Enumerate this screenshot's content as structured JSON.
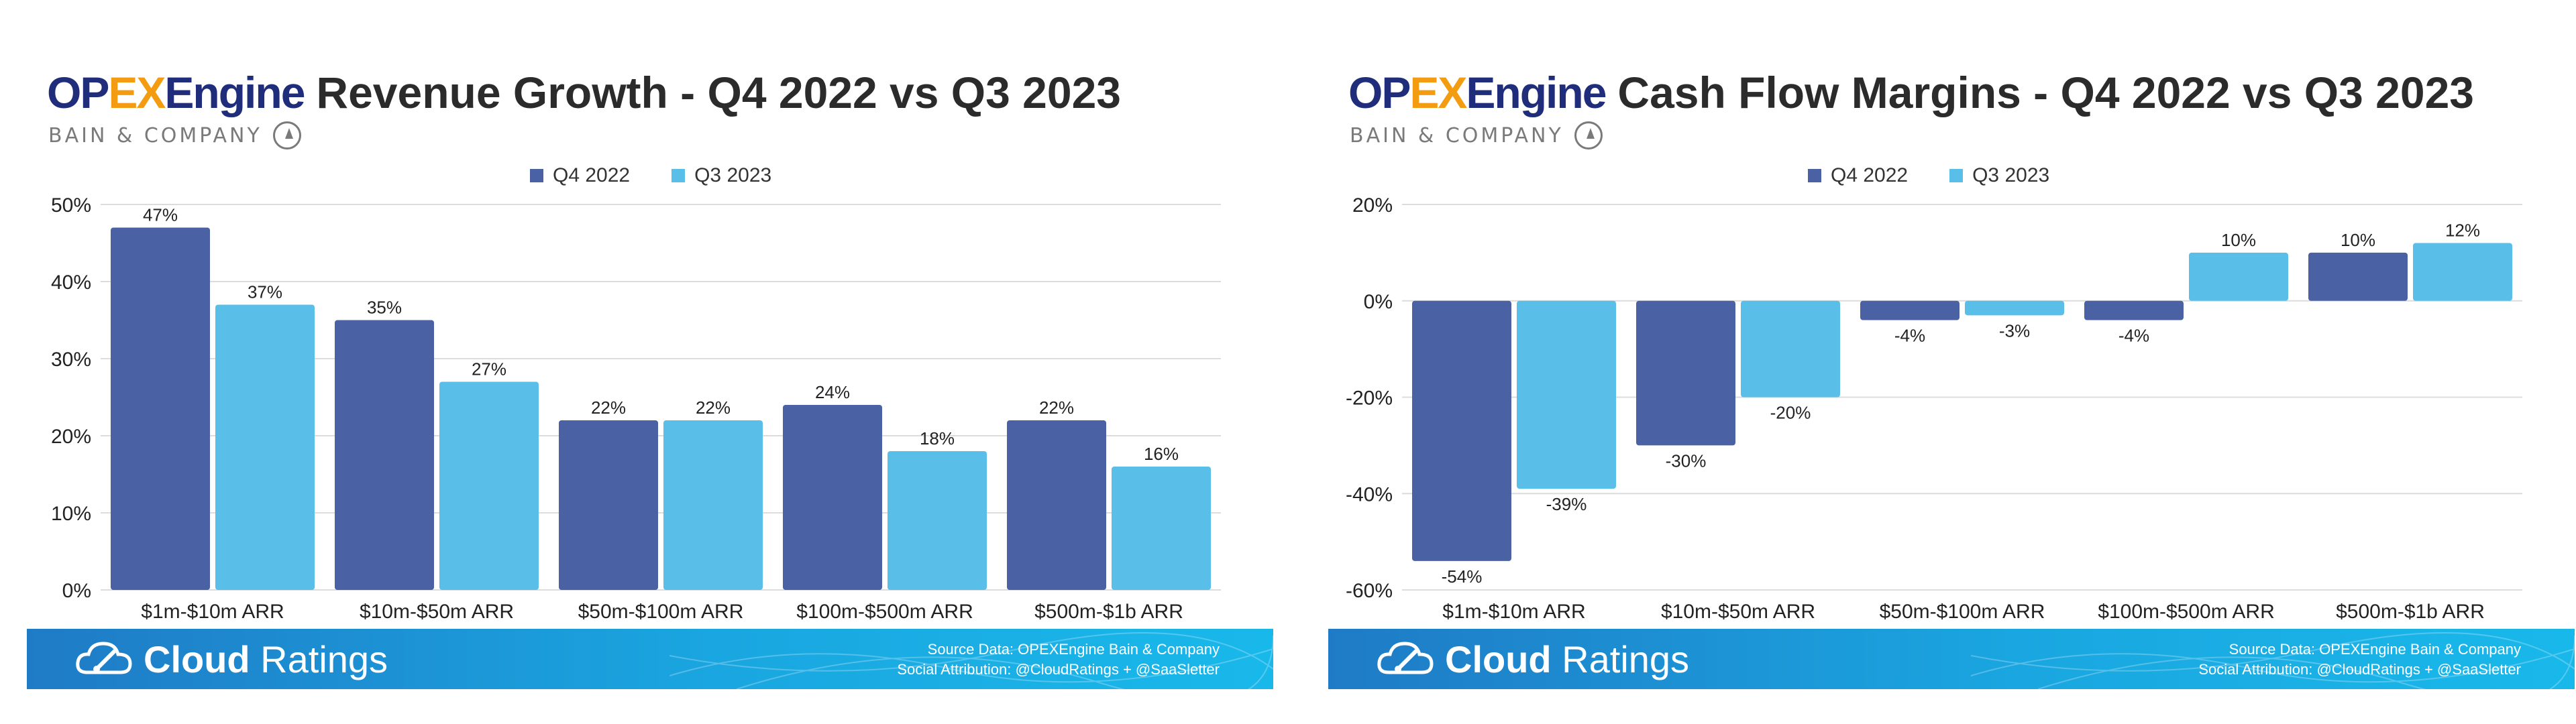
{
  "colors": {
    "q4_2022": "#4a62a3",
    "q3_2023": "#59bfe8",
    "grid": "#dcdcdc",
    "text": "#222222"
  },
  "brand": {
    "op": "OP",
    "ex": "EX",
    "engine": "Engine",
    "bain": "BAIN & COMPANY"
  },
  "footer": {
    "brand_bold": "Cloud",
    "brand_light": " Ratings",
    "source": "Source Data: OPEXEngine Bain & Company",
    "attribution": "Social Attribution: @CloudRatings + @SaaSletter",
    "icon": "cloud-icon"
  },
  "chart_data": [
    {
      "type": "bar",
      "title": "Revenue Growth - Q4 2022 vs Q3 2023",
      "categories": [
        "$1m-$10m ARR",
        "$10m-$50m ARR",
        "$50m-$100m ARR",
        "$100m-$500m ARR",
        "$500m-$1b ARR"
      ],
      "series": [
        {
          "name": "Q4 2022",
          "values": [
            47,
            35,
            22,
            24,
            22
          ],
          "labels": [
            "47%",
            "35%",
            "22%",
            "24%",
            "22%"
          ]
        },
        {
          "name": "Q3 2023",
          "values": [
            37,
            27,
            22,
            18,
            16
          ],
          "labels": [
            "37%",
            "27%",
            "22%",
            "18%",
            "16%"
          ]
        }
      ],
      "ylim": [
        0,
        50
      ],
      "yticks": [
        0,
        10,
        20,
        30,
        40,
        50
      ],
      "ytick_labels": [
        "0%",
        "10%",
        "20%",
        "30%",
        "40%",
        "50%"
      ],
      "grid": true,
      "legend": "top-center"
    },
    {
      "type": "bar",
      "title": "Cash Flow Margins - Q4 2022 vs Q3 2023",
      "categories": [
        "$1m-$10m ARR",
        "$10m-$50m ARR",
        "$50m-$100m ARR",
        "$100m-$500m ARR",
        "$500m-$1b ARR"
      ],
      "series": [
        {
          "name": "Q4 2022",
          "values": [
            -54,
            -30,
            -4,
            -4,
            10
          ],
          "labels": [
            "-54%",
            "-30%",
            "-4%",
            "-4%",
            "10%"
          ]
        },
        {
          "name": "Q3 2023",
          "values": [
            -39,
            -20,
            -3,
            10,
            12
          ],
          "labels": [
            "-39%",
            "-20%",
            "-3%",
            "10%",
            "12%"
          ]
        }
      ],
      "ylim": [
        -60,
        20
      ],
      "yticks": [
        -60,
        -40,
        -20,
        0,
        20
      ],
      "ytick_labels": [
        "-60%",
        "-40%",
        "-20%",
        "0%",
        "20%"
      ],
      "grid": true,
      "legend": "top-center"
    }
  ]
}
